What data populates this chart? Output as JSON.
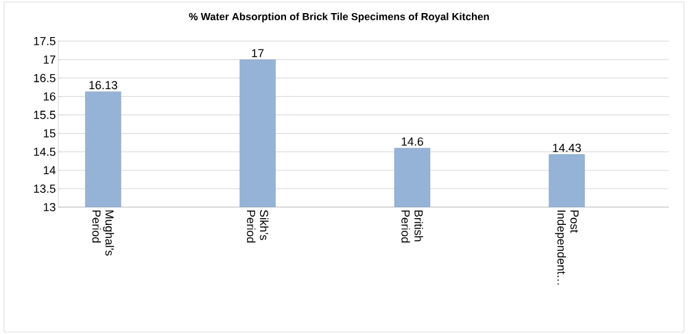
{
  "chart_data": {
    "type": "bar",
    "title": "% Water Absorption of Brick Tile Specimens of Royal Kitchen",
    "categories": [
      "Mughal’s Period",
      "Sikh’s Period",
      "British Period",
      "Post Independent…"
    ],
    "values": [
      16.13,
      17,
      14.6,
      14.43
    ],
    "color": "#95b3d7",
    "ylim": [
      13,
      17.5
    ],
    "yticks": [
      13,
      13.5,
      14,
      14.5,
      15,
      15.5,
      16,
      16.5,
      17,
      17.5
    ],
    "grid": "y",
    "data_labels": true
  }
}
